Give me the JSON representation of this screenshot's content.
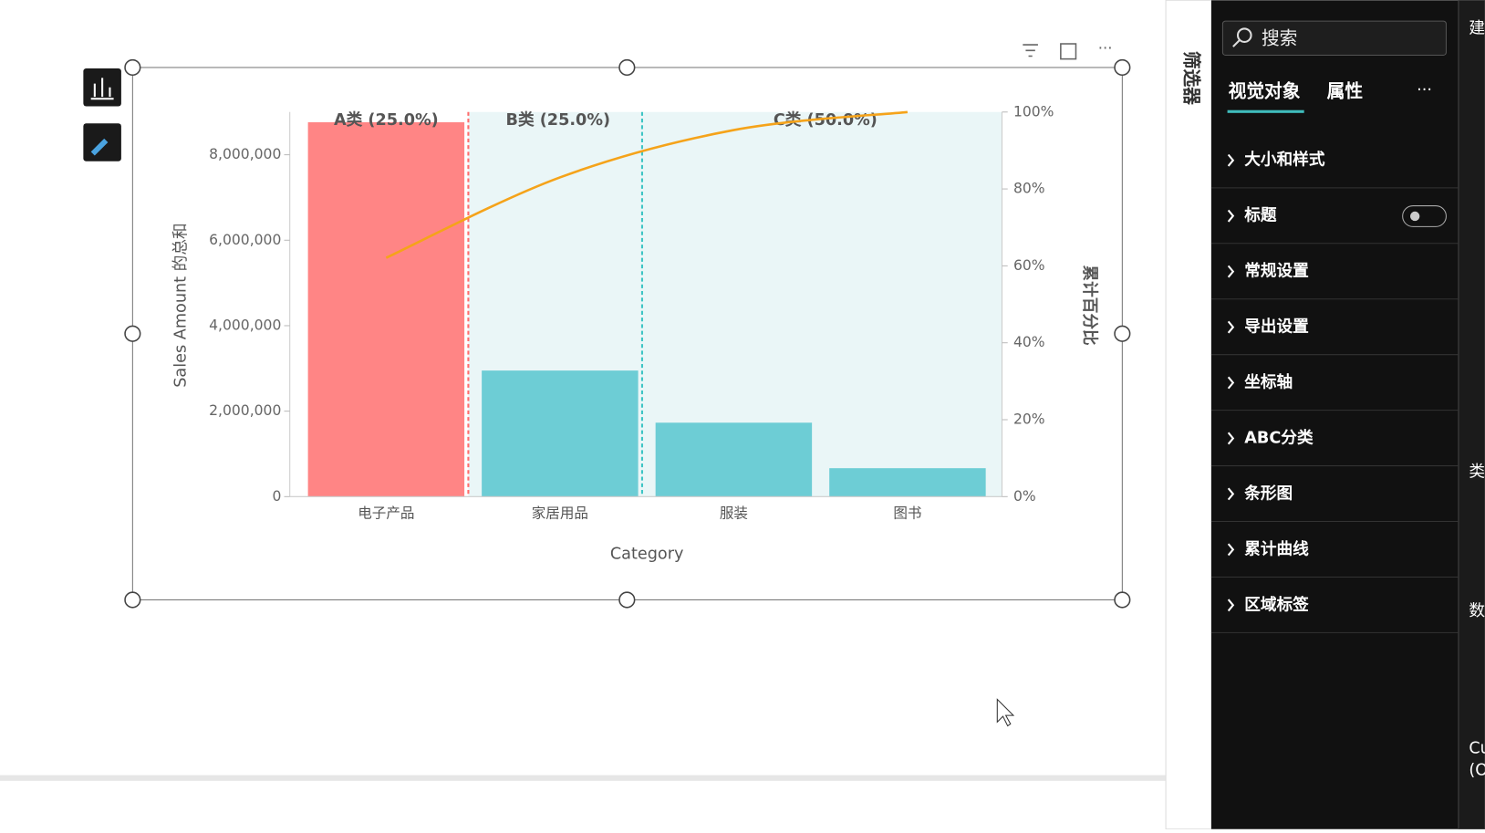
{
  "chart_data": {
    "type": "pareto",
    "categories": [
      "电子产品",
      "家居用品",
      "服装",
      "图书"
    ],
    "series": [
      {
        "type": "bar",
        "values": [
          8760000,
          2950000,
          1730000,
          665000
        ],
        "colors": [
          "#ff8585",
          "#6dcdd5",
          "#6dcdd5",
          "#6dcdd5"
        ]
      },
      {
        "type": "line",
        "axis": "y2",
        "color": "#f5a31a",
        "values": [
          62.1,
          83.0,
          95.3,
          100
        ]
      }
    ],
    "regions": [
      {
        "label": "A类 (25.0%)",
        "color": "#ff6b6b"
      },
      {
        "label": "B类 (25.0%)",
        "color": "#3cc4c4"
      },
      {
        "label": "C类 (50.0%)",
        "color": "#eaf6f7"
      }
    ],
    "ylim": [
      0,
      9000000
    ],
    "yticks": [
      0,
      {
        "value": 2000000,
        "label": "2,000,000"
      },
      {
        "value": 4000000,
        "label": "4,000,000"
      },
      {
        "value": 6000000,
        "label": "6,000,000"
      },
      {
        "value": 8000000,
        "label": "8,000,000"
      }
    ],
    "y2lim": [
      0,
      100
    ],
    "y2ticks": [
      {
        "value": 0,
        "label": "0%"
      },
      {
        "value": 20,
        "label": "20%"
      },
      {
        "value": 40,
        "label": "40%"
      },
      {
        "value": 60,
        "label": "60%"
      },
      {
        "value": 80,
        "label": "80%"
      },
      {
        "value": 100,
        "label": "100%"
      }
    ],
    "ylabel": "Sales Amount 的总和",
    "y2label": "累计百分比",
    "xlabel": "Category"
  },
  "ui": {
    "filter_pane": "筛选器",
    "search": "搜索",
    "tabs": [
      "视觉对象",
      "属性"
    ],
    "more": "···",
    "sections": [
      "大小和样式",
      "标题",
      "常规设置",
      "导出设置",
      "坐标轴",
      "ABC分类",
      "条形图",
      "累计曲线",
      "区域标签"
    ],
    "edge_texts": [
      "建",
      "类",
      "数",
      "Cu",
      "(O"
    ]
  }
}
